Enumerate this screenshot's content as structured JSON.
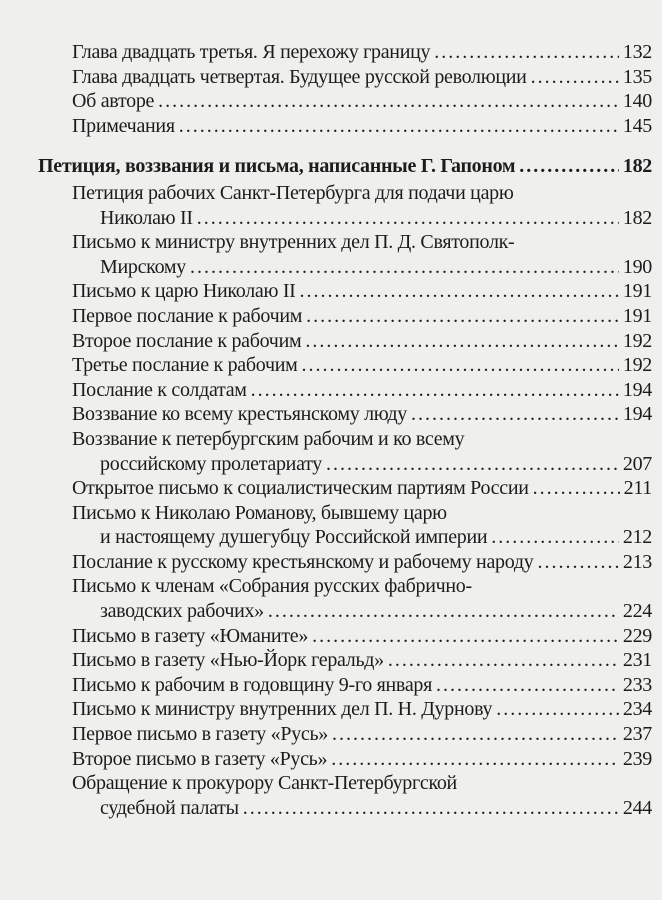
{
  "entries": [
    {
      "lines": [
        "Глава двадцать третья. Я перехожу границу"
      ],
      "page": "132"
    },
    {
      "lines": [
        "Глава двадцать четвертая. Будущее русской революции"
      ],
      "page": "135"
    },
    {
      "lines": [
        "Об авторе"
      ],
      "page": "140"
    },
    {
      "lines": [
        "Примечания"
      ],
      "page": "145"
    },
    {
      "lines": [
        "Петиция, воззвания и письма, написанные Г. Гапоном"
      ],
      "page": "182",
      "bold": true
    },
    {
      "lines": [
        "Петиция рабочих Санкт-Петербурга для подачи царю",
        "Николаю II"
      ],
      "page": "182"
    },
    {
      "lines": [
        "Письмо к министру внутренних дел П. Д. Святополк-",
        "Мирскому"
      ],
      "page": "190"
    },
    {
      "lines": [
        "Письмо к царю Николаю II"
      ],
      "page": "191"
    },
    {
      "lines": [
        "Первое послание к рабочим"
      ],
      "page": "191"
    },
    {
      "lines": [
        "Второе послание к рабочим"
      ],
      "page": "192"
    },
    {
      "lines": [
        "Третье послание к рабочим"
      ],
      "page": "192"
    },
    {
      "lines": [
        "Послание к солдатам"
      ],
      "page": "194"
    },
    {
      "lines": [
        "Воззвание ко всему крестьянскому люду"
      ],
      "page": "194"
    },
    {
      "lines": [
        "Воззвание к петербургским рабочим и ко всему",
        "российскому пролетариату"
      ],
      "page": "207"
    },
    {
      "lines": [
        "Открытое письмо к социалистическим партиям России"
      ],
      "page": "211"
    },
    {
      "lines": [
        "Письмо к Николаю Романову, бывшему царю",
        "и настоящему душегубцу Российской империи"
      ],
      "page": "212"
    },
    {
      "lines": [
        "Послание к русскому крестьянскому и рабочему народу"
      ],
      "page": "213"
    },
    {
      "lines": [
        "Письмо к членам «Собрания русских фабрично-",
        "заводских рабочих»"
      ],
      "page": "224"
    },
    {
      "lines": [
        "Письмо в газету «Юманите»"
      ],
      "page": "229"
    },
    {
      "lines": [
        "Письмо в газету «Нью-Йорк геральд»"
      ],
      "page": "231"
    },
    {
      "lines": [
        "Письмо к рабочим в годовщину 9-го января"
      ],
      "page": "233"
    },
    {
      "lines": [
        "Письмо к министру внутренних дел П. Н. Дурнову"
      ],
      "page": "234"
    },
    {
      "lines": [
        "Первое письмо в газету «Русь»"
      ],
      "page": "237"
    },
    {
      "lines": [
        "Второе письмо в газету «Русь»"
      ],
      "page": "239"
    },
    {
      "lines": [
        "Обращение к прокурору Санкт-Петербургской",
        "судебной палаты"
      ],
      "page": "244"
    }
  ]
}
